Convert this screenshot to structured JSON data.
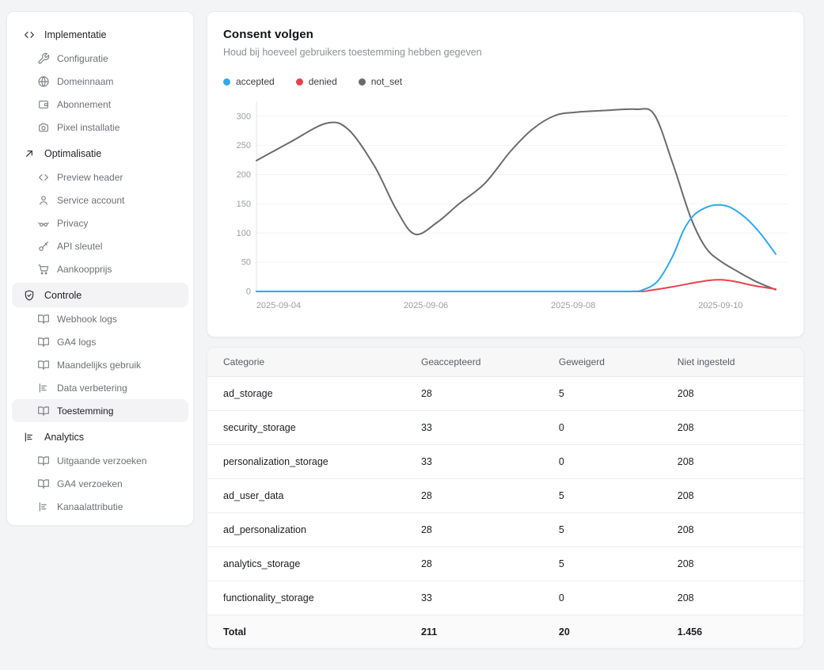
{
  "sidebar": {
    "sections": [
      {
        "label": "Implementatie",
        "icon": "code",
        "active": false,
        "items": [
          {
            "label": "Configuratie",
            "icon": "wrench",
            "active": false
          },
          {
            "label": "Domeinnaam",
            "icon": "globe",
            "active": false
          },
          {
            "label": "Abonnement",
            "icon": "wallet",
            "active": false
          },
          {
            "label": "Pixel installatie",
            "icon": "camera",
            "active": false
          }
        ]
      },
      {
        "label": "Optimalisatie",
        "icon": "arrow-up-right",
        "active": false,
        "items": [
          {
            "label": "Preview header",
            "icon": "code",
            "active": false
          },
          {
            "label": "Service account",
            "icon": "user",
            "active": false
          },
          {
            "label": "Privacy",
            "icon": "glasses",
            "active": false
          },
          {
            "label": "API sleutel",
            "icon": "key",
            "active": false
          },
          {
            "label": "Aankoopprijs",
            "icon": "cart",
            "active": false
          }
        ]
      },
      {
        "label": "Controle",
        "icon": "shield-check",
        "active": true,
        "items": [
          {
            "label": "Webhook logs",
            "icon": "book",
            "active": false
          },
          {
            "label": "GA4 logs",
            "icon": "book",
            "active": false
          },
          {
            "label": "Maandelijks gebruik",
            "icon": "book",
            "active": false
          },
          {
            "label": "Data verbetering",
            "icon": "chart",
            "active": false
          },
          {
            "label": "Toestemming",
            "icon": "book",
            "active": true
          }
        ]
      },
      {
        "label": "Analytics",
        "icon": "chart",
        "active": false,
        "items": [
          {
            "label": "Uitgaande verzoeken",
            "icon": "book",
            "active": false
          },
          {
            "label": "GA4 verzoeken",
            "icon": "book",
            "active": false
          },
          {
            "label": "Kanaalattributie",
            "icon": "chart",
            "active": false
          }
        ]
      }
    ]
  },
  "consent_card": {
    "title": "Consent volgen",
    "subtitle": "Houd bij hoeveel gebruikers toestemming hebben gegeven",
    "legend": [
      {
        "label": "accepted",
        "color": "#2fa9f0"
      },
      {
        "label": "denied",
        "color": "#e8434b"
      },
      {
        "label": "not_set",
        "color": "#6b6b6b"
      }
    ]
  },
  "chart_data": {
    "type": "line",
    "title": "Consent volgen",
    "xlabel": "",
    "ylabel": "",
    "x_unit": "days from 2025-09-04",
    "xlim": [
      -0.15,
      6.9
    ],
    "ylim": [
      0,
      320
    ],
    "y_ticks": [
      0,
      50,
      100,
      150,
      200,
      250,
      300
    ],
    "x_ticks": [
      {
        "pos": 0,
        "label": "2025-09-04"
      },
      {
        "pos": 2,
        "label": "2025-09-06"
      },
      {
        "pos": 4,
        "label": "2025-09-08"
      },
      {
        "pos": 6,
        "label": "2025-09-10"
      }
    ],
    "grid": true,
    "legend_position": "top-left",
    "series": [
      {
        "name": "not_set",
        "color": "#6b6b6b",
        "points": [
          [
            -0.15,
            224
          ],
          [
            0.3,
            255
          ],
          [
            0.8,
            288
          ],
          [
            1.1,
            277
          ],
          [
            1.45,
            215
          ],
          [
            1.75,
            140
          ],
          [
            2.0,
            98
          ],
          [
            2.3,
            118
          ],
          [
            2.6,
            150
          ],
          [
            2.95,
            185
          ],
          [
            3.3,
            240
          ],
          [
            3.6,
            278
          ],
          [
            3.9,
            301
          ],
          [
            4.2,
            307
          ],
          [
            4.6,
            310
          ],
          [
            5.0,
            312
          ],
          [
            5.25,
            303
          ],
          [
            5.5,
            220
          ],
          [
            5.75,
            125
          ],
          [
            5.95,
            75
          ],
          [
            6.15,
            52
          ],
          [
            6.4,
            33
          ],
          [
            6.65,
            16
          ],
          [
            6.9,
            3
          ]
        ]
      },
      {
        "name": "denied",
        "color": "#e8434b",
        "points": [
          [
            -0.15,
            0
          ],
          [
            1,
            0
          ],
          [
            2,
            0
          ],
          [
            3,
            0
          ],
          [
            4,
            0
          ],
          [
            5.0,
            0
          ],
          [
            5.2,
            2
          ],
          [
            5.5,
            8
          ],
          [
            5.8,
            15
          ],
          [
            6.0,
            19
          ],
          [
            6.15,
            20
          ],
          [
            6.35,
            17
          ],
          [
            6.6,
            10
          ],
          [
            6.9,
            4
          ]
        ]
      },
      {
        "name": "accepted",
        "color": "#2fa9f0",
        "points": [
          [
            -0.15,
            0
          ],
          [
            1,
            0
          ],
          [
            2,
            0
          ],
          [
            3,
            0
          ],
          [
            4,
            0
          ],
          [
            4.9,
            0
          ],
          [
            5.1,
            3
          ],
          [
            5.3,
            18
          ],
          [
            5.5,
            60
          ],
          [
            5.65,
            105
          ],
          [
            5.8,
            132
          ],
          [
            6.0,
            146
          ],
          [
            6.15,
            148
          ],
          [
            6.3,
            143
          ],
          [
            6.5,
            125
          ],
          [
            6.7,
            98
          ],
          [
            6.9,
            64
          ]
        ]
      }
    ]
  },
  "table": {
    "columns": [
      "Categorie",
      "Geaccepteerd",
      "Geweigerd",
      "Niet ingesteld"
    ],
    "rows": [
      [
        "ad_storage",
        "28",
        "5",
        "208"
      ],
      [
        "security_storage",
        "33",
        "0",
        "208"
      ],
      [
        "personalization_storage",
        "33",
        "0",
        "208"
      ],
      [
        "ad_user_data",
        "28",
        "5",
        "208"
      ],
      [
        "ad_personalization",
        "28",
        "5",
        "208"
      ],
      [
        "analytics_storage",
        "28",
        "5",
        "208"
      ],
      [
        "functionality_storage",
        "33",
        "0",
        "208"
      ]
    ],
    "total_row": [
      "Total",
      "211",
      "20",
      "1.456"
    ]
  }
}
